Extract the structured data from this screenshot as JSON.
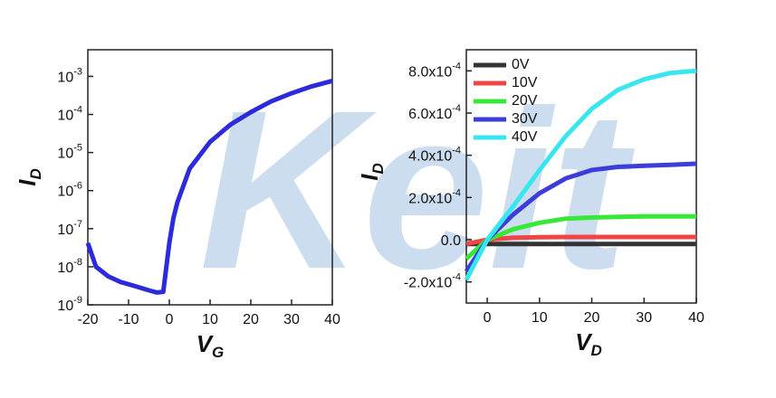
{
  "watermark": "Keit",
  "chart_data": [
    {
      "type": "line",
      "yscale": "log",
      "ylabel": "ID",
      "xlabel": "VG",
      "x": [
        -20,
        -18,
        -15,
        -12,
        -8,
        -5,
        -3,
        -1.5,
        0,
        1,
        2,
        5,
        10,
        15,
        20,
        25,
        30,
        35,
        40
      ],
      "values": [
        4.2e-08,
        1e-08,
        5.6e-09,
        4e-09,
        3e-09,
        2.4e-09,
        2.1e-09,
        2.2e-09,
        4.2e-08,
        1.9e-07,
        5e-07,
        3.8e-06,
        1.9e-05,
        5.4e-05,
        0.000115,
        0.00022,
        0.00036,
        0.00055,
        0.00076
      ],
      "color": "#2b2bdb",
      "xlim": [
        -20,
        40
      ],
      "xticks": [
        -20,
        -10,
        0,
        10,
        20,
        30,
        40
      ],
      "ylim": [
        1e-09,
        0.005
      ],
      "yticks": [
        {
          "value": 1e-09,
          "label": "10-9"
        },
        {
          "value": 1e-08,
          "label": "10-8"
        },
        {
          "value": 1e-07,
          "label": "10-7"
        },
        {
          "value": 1e-06,
          "label": "10-6"
        },
        {
          "value": 1e-05,
          "label": "10-5"
        },
        {
          "value": 0.0001,
          "label": "10-4"
        },
        {
          "value": 0.001,
          "label": "10-3"
        }
      ]
    },
    {
      "type": "line",
      "ylabel": "ID",
      "xlabel": "VD",
      "legend": "upper left",
      "x": [
        -4,
        0,
        5,
        10,
        15,
        20,
        25,
        30,
        35,
        40
      ],
      "series": [
        {
          "name": "0V",
          "color": "#333333",
          "values": [
            -2e-05,
            -2e-05,
            -2e-05,
            -2e-05,
            -2e-05,
            -2e-05,
            -2e-05,
            -2e-05,
            -2e-05,
            -2e-05
          ]
        },
        {
          "name": "10V",
          "color": "#f04545",
          "values": [
            -2e-05,
            0,
            1e-05,
            1.2e-05,
            1.3e-05,
            1.3e-05,
            1.3e-05,
            1.3e-05,
            1.3e-05,
            1.3e-05
          ]
        },
        {
          "name": "20V",
          "color": "#38e838",
          "values": [
            -9e-05,
            0,
            5e-05,
            8e-05,
            0.0001,
            0.000105,
            0.000108,
            0.00011,
            0.00011,
            0.00011
          ]
        },
        {
          "name": "30V",
          "color": "#3d3dd9",
          "values": [
            -0.00015,
            0,
            0.00012,
            0.00022,
            0.00029,
            0.00033,
            0.000345,
            0.00035,
            0.000355,
            0.00036
          ]
        },
        {
          "name": "40V",
          "color": "#38e6f0",
          "values": [
            -0.00019,
            0,
            0.00016,
            0.00033,
            0.00049,
            0.00062,
            0.00071,
            0.00076,
            0.00079,
            0.0008
          ]
        }
      ],
      "xlim": [
        -4,
        40
      ],
      "xticks": [
        0,
        10,
        20,
        30,
        40
      ],
      "ylim": [
        -0.0003,
        0.0009
      ],
      "yticks": [
        {
          "value": -0.0002,
          "label": "-2.0x10-4"
        },
        {
          "value": 0,
          "label": "0.0"
        },
        {
          "value": 0.0002,
          "label": "2.0x10-4"
        },
        {
          "value": 0.0004,
          "label": "4.0x10-4"
        },
        {
          "value": 0.0006,
          "label": "6.0x10-4"
        },
        {
          "value": 0.0008,
          "label": "8.0x10-4"
        }
      ]
    }
  ]
}
